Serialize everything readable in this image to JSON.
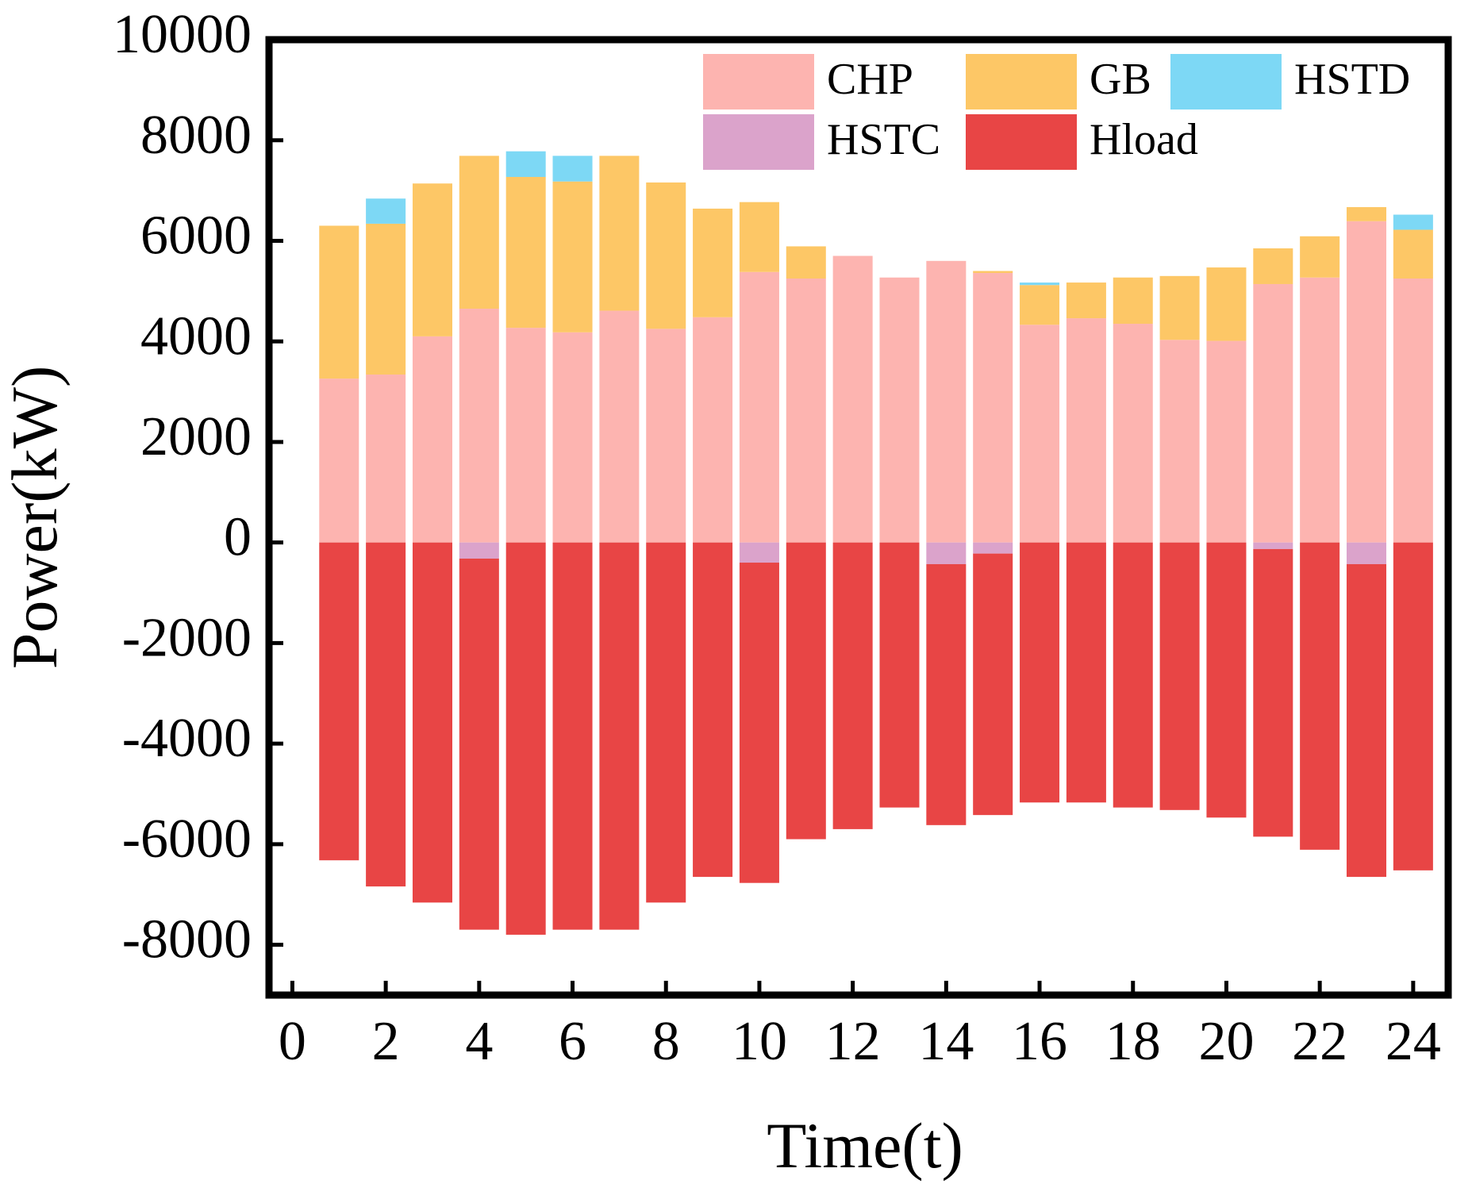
{
  "chart_data": {
    "type": "bar",
    "stacked": true,
    "x_label": "Time(t)",
    "y_label": "Power(kW)",
    "x": [
      1,
      2,
      3,
      4,
      5,
      6,
      7,
      8,
      9,
      10,
      11,
      12,
      13,
      14,
      15,
      16,
      17,
      18,
      19,
      20,
      21,
      22,
      23,
      24
    ],
    "series": [
      {
        "name": "CHP",
        "color": "#fdb4b0",
        "values": [
          3260,
          3340,
          4100,
          4650,
          4270,
          4180,
          4610,
          4250,
          4480,
          5380,
          5250,
          5700,
          5270,
          5600,
          5360,
          4330,
          4460,
          4350,
          4030,
          4010,
          5140,
          5270,
          6390,
          5250
        ]
      },
      {
        "name": "GB",
        "color": "#fdc766",
        "values": [
          3040,
          3000,
          3040,
          3040,
          3000,
          3000,
          3080,
          2910,
          2160,
          1390,
          640,
          0,
          0,
          0,
          40,
          790,
          710,
          920,
          1270,
          1460,
          710,
          820,
          280,
          970
        ]
      },
      {
        "name": "HSTD",
        "color": "#7dd8f5",
        "values": [
          0,
          500,
          0,
          0,
          510,
          510,
          0,
          0,
          0,
          0,
          0,
          0,
          0,
          0,
          0,
          50,
          0,
          0,
          0,
          0,
          0,
          0,
          0,
          300
        ]
      },
      {
        "name": "HSTC",
        "color": "#dba3cb",
        "values": [
          0,
          0,
          0,
          -320,
          0,
          0,
          0,
          0,
          0,
          -400,
          0,
          0,
          0,
          -430,
          -220,
          0,
          0,
          0,
          0,
          0,
          -130,
          0,
          -430,
          0
        ]
      },
      {
        "name": "Hload",
        "color": "#e84545",
        "values": [
          -6320,
          -6840,
          -7160,
          -7380,
          -7800,
          -7700,
          -7700,
          -7160,
          -6650,
          -6370,
          -5900,
          -5700,
          -5270,
          -5190,
          -5200,
          -5170,
          -5170,
          -5270,
          -5320,
          -5470,
          -5720,
          -6110,
          -6220,
          -6520
        ]
      }
    ],
    "xlim": [
      -0.5,
      24.75
    ],
    "xticks": [
      0,
      2,
      4,
      6,
      8,
      10,
      12,
      14,
      16,
      18,
      20,
      22,
      24
    ],
    "ylim": [
      -9000,
      10000
    ],
    "yticks": [
      -8000,
      -6000,
      -4000,
      -2000,
      0,
      2000,
      4000,
      6000,
      8000,
      10000
    ],
    "legend": "upper right"
  }
}
